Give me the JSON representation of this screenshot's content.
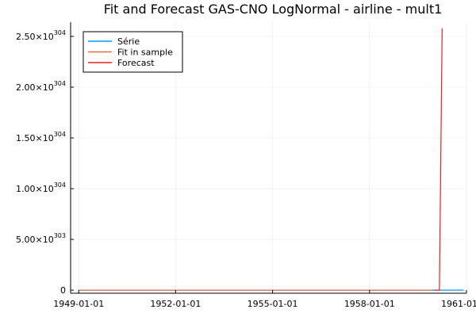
{
  "chart_data": {
    "type": "line",
    "title": "Fit and Forecast GAS-CNO LogNormal - airline - mult1",
    "xlabel": "",
    "ylabel": "",
    "x_axis": {
      "kind": "date",
      "range": [
        "1948-10-01",
        "1961-01-01"
      ],
      "ticks": [
        "1949-01-01",
        "1952-01-01",
        "1955-01-01",
        "1958-01-01",
        "1961-01-01"
      ],
      "tick_labels": [
        "1949-01-01",
        "1952-01-01",
        "1955-01-01",
        "1958-01-01",
        "1961-01-01"
      ]
    },
    "y_axis": {
      "range": [
        -3e+302,
        2.64e+304
      ],
      "ticks": [
        0,
        5e+303,
        1e+304,
        1.5e+304,
        2e+304,
        2.5e+304
      ],
      "tick_labels": [
        {
          "base": "0",
          "exp": ""
        },
        {
          "base": "5.00×10",
          "exp": "303"
        },
        {
          "base": "1.00×10",
          "exp": "304"
        },
        {
          "base": "1.50×10",
          "exp": "304"
        },
        {
          "base": "2.00×10",
          "exp": "304"
        },
        {
          "base": "2.50×10",
          "exp": "304"
        }
      ]
    },
    "grid": true,
    "legend_position": "top-left",
    "series": [
      {
        "name": "Série",
        "color": "#009AFA",
        "x": [
          "1949-01-01",
          "1960-12-01"
        ],
        "y": [
          0,
          0
        ]
      },
      {
        "name": "Fit in sample",
        "color": "#E26F46",
        "x": [
          "1949-01-01",
          "1959-12-01"
        ],
        "y": [
          0,
          0
        ]
      },
      {
        "name": "Forecast",
        "color": "#E8221C",
        "x": [
          "1960-01-01",
          "1960-02-01",
          "1960-03-01",
          "1960-04-01"
        ],
        "y": [
          0,
          0,
          0,
          2.58e+304
        ]
      }
    ]
  }
}
